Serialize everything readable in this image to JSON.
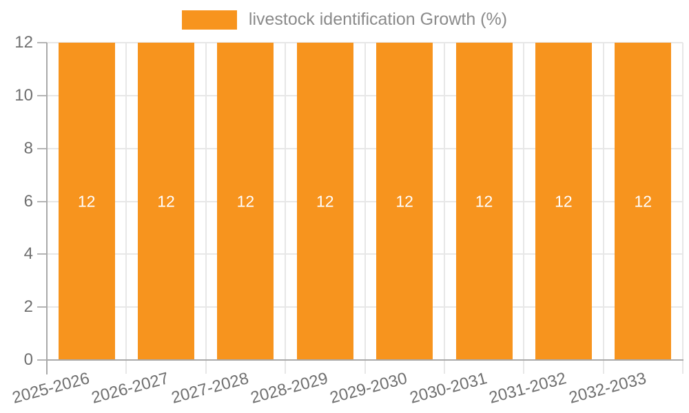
{
  "chart_data": {
    "type": "bar",
    "title": "",
    "legend": "livestock identification Growth (%)",
    "legend_position": "top-center",
    "categories": [
      "2025-2026",
      "2026-2027",
      "2027-2028",
      "2028-2029",
      "2029-2030",
      "2030-2031",
      "2031-2032",
      "2032-2033"
    ],
    "series": [
      {
        "name": "livestock identification Growth (%)",
        "values": [
          12,
          12,
          12,
          12,
          12,
          12,
          12,
          12
        ]
      }
    ],
    "bar_value_labels": [
      "12",
      "12",
      "12",
      "12",
      "12",
      "12",
      "12",
      "12"
    ],
    "xlabel": "",
    "ylabel": "",
    "y_ticks": [
      0,
      2,
      4,
      6,
      8,
      10,
      12
    ],
    "ylim": [
      0,
      12
    ],
    "grid": true,
    "x_label_rotation_deg": -15,
    "colors": {
      "bar": "#f7941e",
      "bar_label": "#ffffff",
      "gridline": "#e7e7e7",
      "axis": "#a9a9a9",
      "tick": "#b3b3b3",
      "axis_label_text": "#6f6f6f",
      "legend_text": "#8a8a8a",
      "background": "#ffffff"
    }
  }
}
